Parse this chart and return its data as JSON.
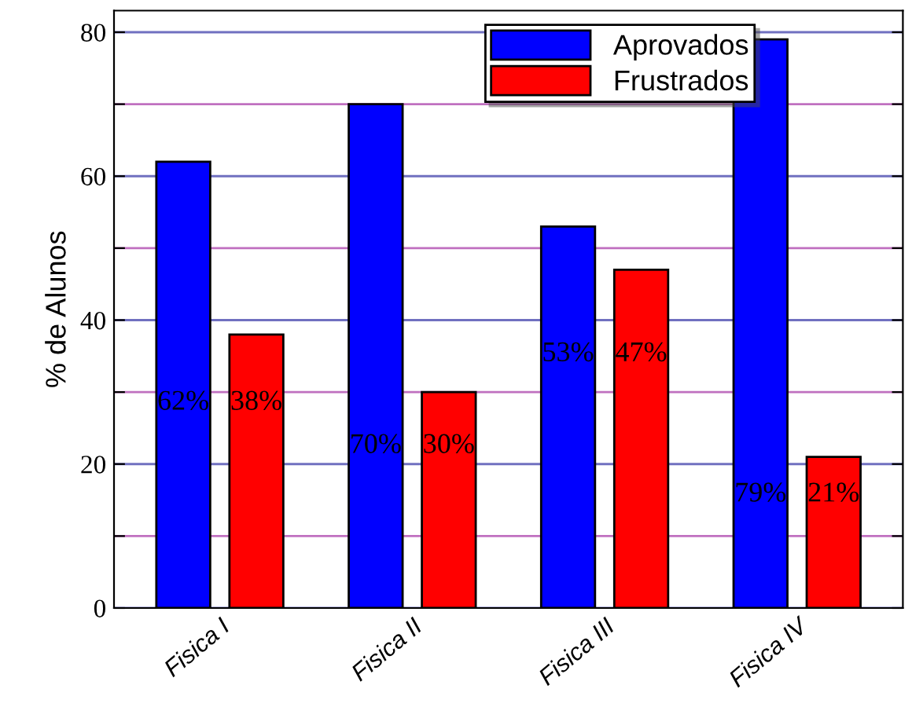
{
  "chart_data": {
    "type": "bar",
    "ylabel": "% de Alunos",
    "categories": [
      "Fisica I",
      "Fisica II",
      "Fisica III",
      "Fisica IV"
    ],
    "series": [
      {
        "name": "Aprovados",
        "color": "#0000ff",
        "values": [
          62,
          70,
          53,
          79
        ],
        "value_labels": [
          "62%",
          "70%",
          "53%",
          "79%"
        ]
      },
      {
        "name": "Frustrados",
        "color": "#ff0000",
        "values": [
          38,
          30,
          47,
          21
        ],
        "value_labels": [
          "38%",
          "30%",
          "47%",
          "21%"
        ]
      }
    ],
    "ylim": [
      0,
      83
    ],
    "yticks": [
      0,
      {
        "value": 10,
        "label": null
      },
      20,
      {
        "value": 30,
        "label": null
      },
      40,
      {
        "value": 50,
        "label": null
      },
      60,
      {
        "value": 70,
        "label": null
      },
      80
    ],
    "grid": "y",
    "legend": "top right"
  }
}
